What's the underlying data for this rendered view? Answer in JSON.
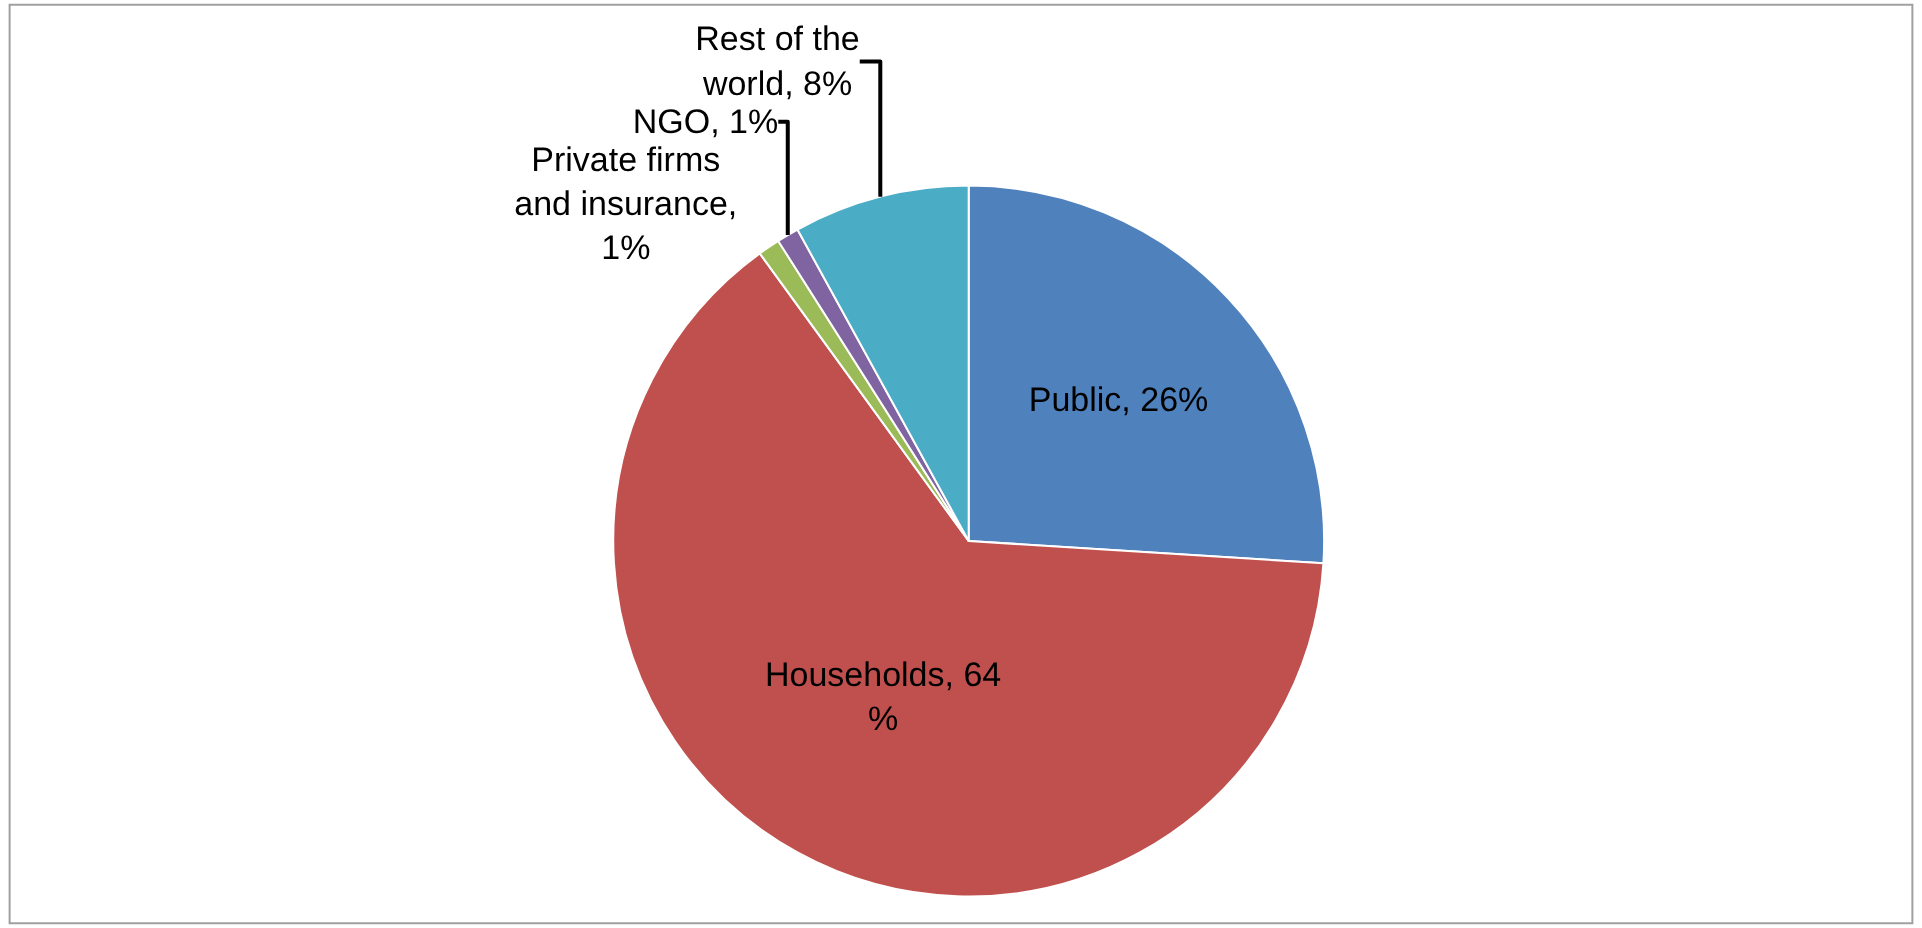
{
  "chart_data": {
    "type": "pie",
    "categories": [
      "Public, 26%",
      "Households, 64 %",
      "Private firms and insurance, 1%",
      "NGO, 1%",
      "Rest of the world, 8%"
    ],
    "values": [
      26,
      64,
      1,
      1,
      8
    ],
    "colors": [
      "#4f81bd",
      "#c0504d",
      "#9bbb59",
      "#8064a2",
      "#4bacc6"
    ]
  }
}
